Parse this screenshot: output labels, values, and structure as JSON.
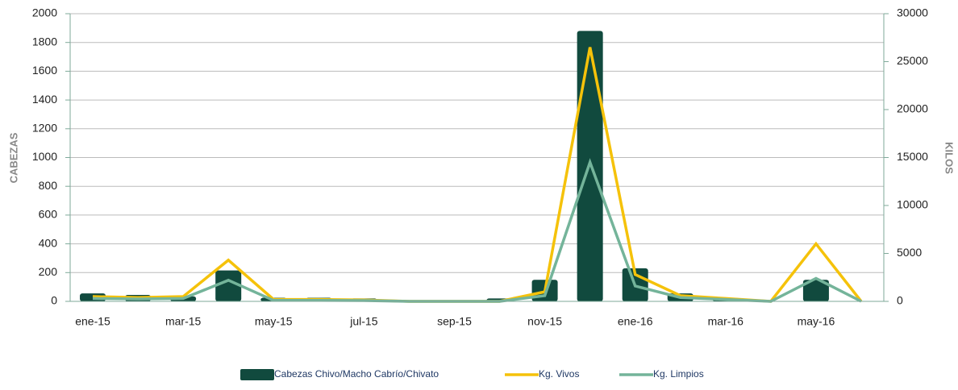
{
  "chart_data": {
    "type": "bar_line",
    "categories": [
      "ene-15",
      null,
      "mar-15",
      null,
      "may-15",
      null,
      "jul-15",
      null,
      "sep-15",
      null,
      "nov-15",
      null,
      "ene-16",
      null,
      "mar-16",
      null,
      "may-16",
      null
    ],
    "ylabel": "CABEZAS",
    "y2label": "KILOS",
    "ylim": [
      0,
      2000
    ],
    "yticks": [
      0,
      200,
      400,
      600,
      800,
      1000,
      1200,
      1400,
      1600,
      1800,
      2000
    ],
    "y2lim": [
      0,
      30000
    ],
    "y2ticks": [
      0,
      5000,
      10000,
      15000,
      20000,
      25000,
      30000
    ],
    "grid": true,
    "series": [
      {
        "name": "Cabezas Chivo/Macho Cabrío/Chivato",
        "type": "bar",
        "color": "#114a3e",
        "values": [
          55,
          45,
          35,
          215,
          25,
          25,
          20,
          0,
          0,
          20,
          150,
          1880,
          230,
          55,
          25,
          0,
          150,
          0
        ]
      },
      {
        "name": "Kg. Vivos",
        "type": "line",
        "axis": "y2",
        "color": "#f5c20a",
        "values": [
          500,
          400,
          500,
          4300,
          200,
          200,
          150,
          0,
          0,
          0,
          1000,
          26500,
          2800,
          600,
          300,
          0,
          6000,
          0
        ]
      },
      {
        "name": "Kg. Limpios",
        "type": "line",
        "axis": "y2",
        "color": "#74b49a",
        "values": [
          300,
          250,
          300,
          2200,
          100,
          100,
          80,
          0,
          0,
          0,
          600,
          14500,
          1600,
          400,
          200,
          0,
          2400,
          0
        ]
      }
    ]
  }
}
